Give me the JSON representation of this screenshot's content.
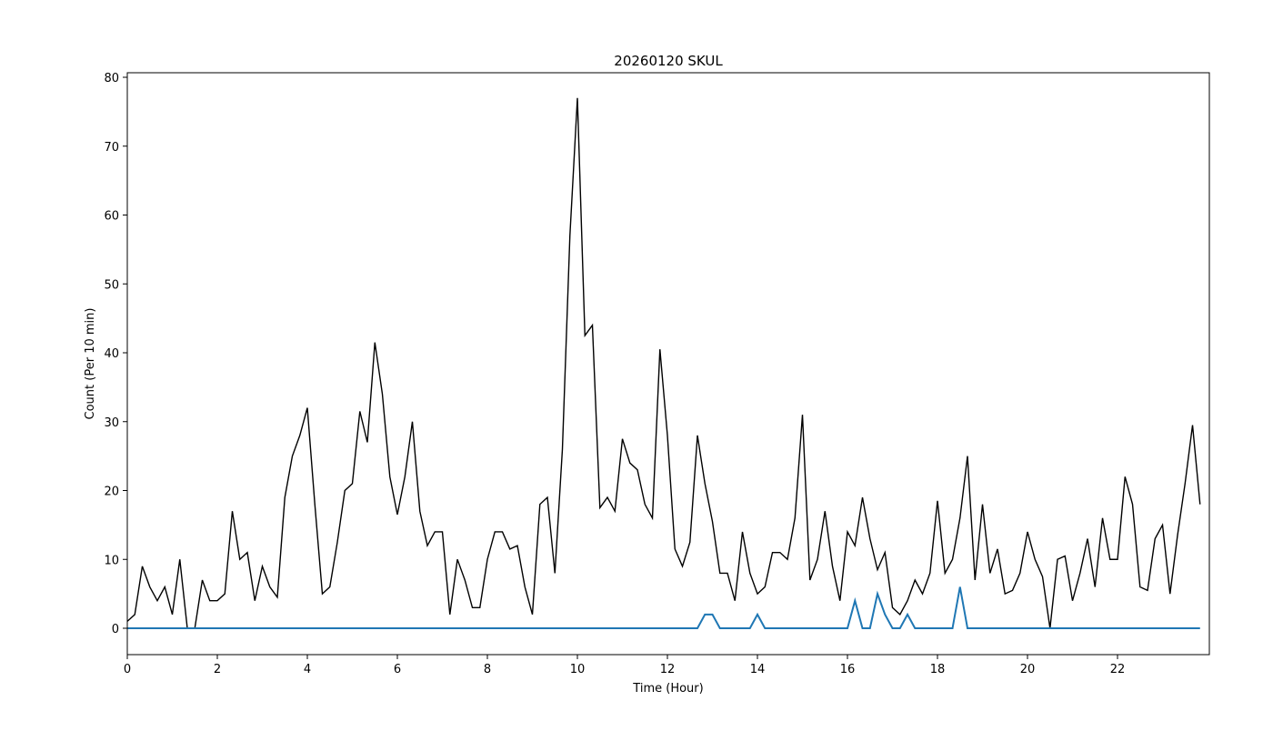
{
  "chart_data": {
    "type": "line",
    "title": "20260120 SKUL",
    "xlabel": "Time (Hour)",
    "ylabel": "Count (Per 10 min)",
    "xlim": [
      0,
      24
    ],
    "ylim": [
      -4,
      81
    ],
    "xticks": [
      0,
      2,
      4,
      6,
      8,
      10,
      12,
      14,
      16,
      18,
      20,
      22
    ],
    "yticks": [
      0,
      10,
      20,
      30,
      40,
      50,
      60,
      70,
      80
    ],
    "grid": false,
    "legend": "none",
    "x_step_hours": 0.16667,
    "series": [
      {
        "color": "#000000",
        "stroke": 1.4,
        "values": [
          1,
          2,
          9,
          6,
          4,
          6,
          2,
          10,
          0,
          0,
          7,
          4,
          4,
          5,
          17,
          10,
          11,
          4,
          9,
          6,
          4.5,
          19,
          25,
          28,
          32,
          18,
          5,
          6,
          12.5,
          20,
          21,
          31.5,
          27,
          41.5,
          34,
          22,
          16.5,
          22,
          30,
          17,
          12,
          14,
          14,
          2,
          10,
          7,
          3,
          3,
          10,
          14,
          14,
          11.5,
          12,
          6,
          2,
          18,
          19,
          8,
          26,
          57,
          77,
          42.5,
          44,
          17.5,
          19,
          17,
          27.5,
          24,
          23,
          18,
          16,
          40.5,
          28,
          11.5,
          9,
          12.5,
          28,
          21,
          15.5,
          8,
          8,
          4,
          14,
          8,
          5,
          6,
          11,
          11,
          10,
          16,
          31,
          7,
          10,
          17,
          9,
          4,
          14,
          12,
          19,
          13,
          8.5,
          11,
          3,
          2,
          4,
          7,
          5,
          8,
          18.5,
          8,
          10,
          16,
          25,
          7,
          18,
          8,
          11.5,
          5,
          5.5,
          8,
          14,
          10,
          7.5,
          0,
          10,
          10.5,
          4,
          8,
          13,
          6,
          16,
          10,
          10,
          22,
          18,
          6,
          5.5,
          13,
          15,
          5,
          13.5,
          21,
          29.5,
          18
        ]
      },
      {
        "color": "#1f77b4",
        "stroke": 2,
        "values": [
          0,
          0,
          0,
          0,
          0,
          0,
          0,
          0,
          0,
          0,
          0,
          0,
          0,
          0,
          0,
          0,
          0,
          0,
          0,
          0,
          0,
          0,
          0,
          0,
          0,
          0,
          0,
          0,
          0,
          0,
          0,
          0,
          0,
          0,
          0,
          0,
          0,
          0,
          0,
          0,
          0,
          0,
          0,
          0,
          0,
          0,
          0,
          0,
          0,
          0,
          0,
          0,
          0,
          0,
          0,
          0,
          0,
          0,
          0,
          0,
          0,
          0,
          0,
          0,
          0,
          0,
          0,
          0,
          0,
          0,
          0,
          0,
          0,
          0,
          0,
          0,
          0,
          2,
          2,
          0,
          0,
          0,
          0,
          0,
          2,
          0,
          0,
          0,
          0,
          0,
          0,
          0,
          0,
          0,
          0,
          0,
          0,
          4,
          0,
          0,
          5,
          2,
          0,
          0,
          2,
          0,
          0,
          0,
          0,
          0,
          0,
          6,
          0,
          0,
          0,
          0,
          0,
          0,
          0,
          0,
          0,
          0,
          0,
          0,
          0,
          0,
          0,
          0,
          0,
          0,
          0,
          0,
          0,
          0,
          0,
          0,
          0,
          0,
          0,
          0,
          0,
          0,
          0,
          0
        ]
      }
    ]
  }
}
